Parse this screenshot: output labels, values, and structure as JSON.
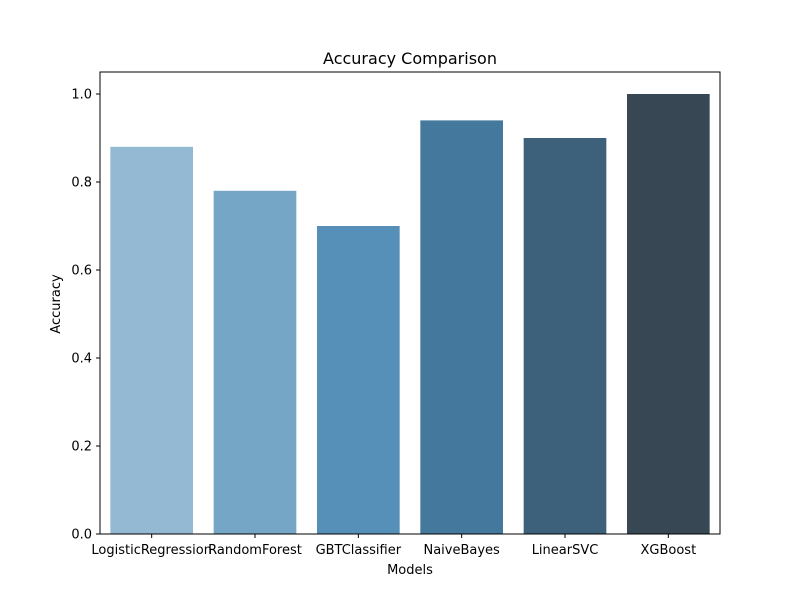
{
  "chart_data": {
    "type": "bar",
    "title": "Accuracy Comparison",
    "xlabel": "Models",
    "ylabel": "Accuracy",
    "categories": [
      "LogisticRegression",
      "RandomForest",
      "GBTClassifier",
      "NaiveBayes",
      "LinearSVC",
      "XGBoost"
    ],
    "values": [
      0.88,
      0.78,
      0.7,
      0.94,
      0.9,
      1.0
    ],
    "colors": [
      "#93b9d3",
      "#75a6c5",
      "#568fb8",
      "#44789c",
      "#3e617b",
      "#384754"
    ],
    "ylim": [
      0,
      1.05
    ],
    "yticks": [
      0.0,
      0.2,
      0.4,
      0.6,
      0.8,
      1.0
    ],
    "ytick_labels": [
      "0.0",
      "0.2",
      "0.4",
      "0.6",
      "0.8",
      "1.0"
    ],
    "grid": false,
    "legend": "none"
  }
}
